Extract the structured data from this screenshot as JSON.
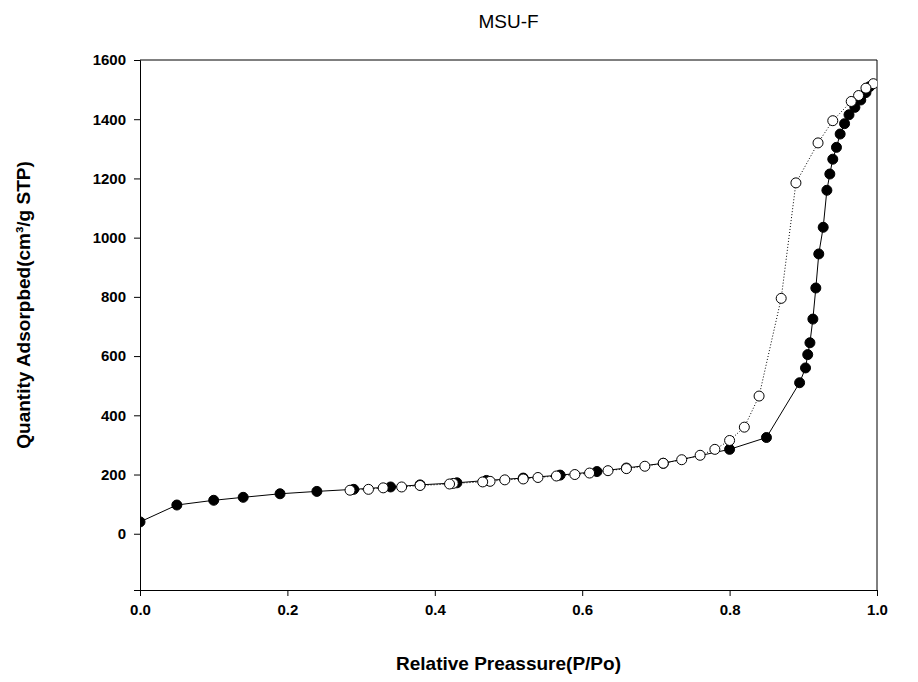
{
  "chart_data": {
    "type": "line",
    "title": "MSU-F",
    "x_label": "Relative Preassure(P/Po)",
    "y_label": "Quantity Adsorpbed(cm³/g STP)",
    "xlim": [
      0,
      1
    ],
    "ylim": [
      -190,
      1600
    ],
    "xticks": [
      {
        "value": 0,
        "label": "0.0"
      },
      {
        "value": 0.2,
        "label": "0.2"
      },
      {
        "value": 0.4,
        "label": "0.4"
      },
      {
        "value": 0.6,
        "label": "0.6"
      },
      {
        "value": 0.8,
        "label": "0.8"
      },
      {
        "value": 1,
        "label": "1.0"
      }
    ],
    "yticks": [
      0,
      200,
      400,
      600,
      800,
      1000,
      1200,
      1400,
      1600
    ],
    "grid": false,
    "series": [
      {
        "color": "#000000",
        "marker": "filled-circle",
        "line_style": "solid",
        "x": [
          0.0,
          0.05,
          0.1,
          0.14,
          0.19,
          0.24,
          0.29,
          0.34,
          0.38,
          0.43,
          0.47,
          0.52,
          0.57,
          0.62,
          0.66,
          0.71,
          0.8,
          0.85,
          0.895,
          0.903,
          0.906,
          0.909,
          0.913,
          0.917,
          0.921,
          0.927,
          0.932,
          0.936,
          0.94,
          0.945,
          0.95,
          0.956,
          0.962,
          0.97,
          0.978,
          0.985,
          0.99
        ],
        "values": [
          40,
          97,
          113,
          123,
          135,
          143,
          150,
          158,
          165,
          172,
          180,
          188,
          198,
          210,
          222,
          238,
          285,
          325,
          510,
          560,
          605,
          645,
          725,
          830,
          945,
          1035,
          1160,
          1215,
          1265,
          1305,
          1350,
          1385,
          1415,
          1440,
          1465,
          1490,
          1510
        ]
      },
      {
        "color": "#000000",
        "marker": "open-circle",
        "line_style": "dotted",
        "x": [
          0.995,
          0.985,
          0.975,
          0.965,
          0.94,
          0.92,
          0.89,
          0.87,
          0.84,
          0.82,
          0.8,
          0.78,
          0.76,
          0.735,
          0.71,
          0.685,
          0.66,
          0.635,
          0.61,
          0.59,
          0.565,
          0.54,
          0.52,
          0.495,
          0.475,
          0.465,
          0.425,
          0.42,
          0.38,
          0.355,
          0.33,
          0.31,
          0.285
        ],
        "values": [
          1520,
          1505,
          1480,
          1460,
          1395,
          1320,
          1185,
          795,
          465,
          360,
          315,
          285,
          265,
          250,
          238,
          228,
          220,
          213,
          205,
          200,
          195,
          190,
          185,
          182,
          177,
          175,
          170,
          168,
          163,
          158,
          155,
          150,
          147
        ]
      }
    ]
  }
}
